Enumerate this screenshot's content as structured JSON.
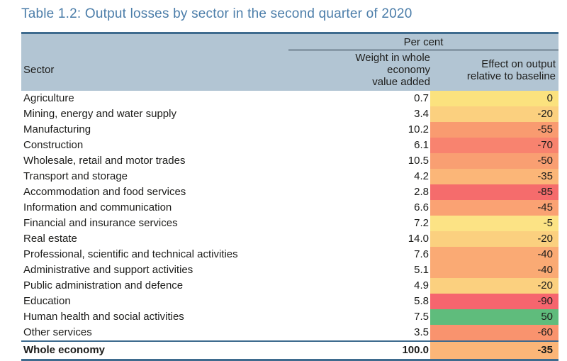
{
  "title": "Table 1.2: Output losses by sector in the second quarter of 2020",
  "colors": {
    "title_blue": "#4B7DA9",
    "header_background": "#B2C5D3",
    "table_border": "#3E6B8E",
    "percent_underline": "#22313F",
    "body_text": "#1d1d1b"
  },
  "table": {
    "group_header": "Per cent",
    "columns": {
      "sector": "Sector",
      "weight_line1": "Weight in whole economy",
      "weight_line2": "value added",
      "effect_line1": "Effect on output",
      "effect_line2": "relative to baseline"
    },
    "rows": [
      {
        "sector": "Agriculture",
        "weight": "0.7",
        "effect": "0",
        "color": "#FBE27E"
      },
      {
        "sector": "Mining, energy and water supply",
        "weight": "3.4",
        "effect": "-20",
        "color": "#FBD07F"
      },
      {
        "sector": "Manufacturing",
        "weight": "10.2",
        "effect": "-55",
        "color": "#F99B70"
      },
      {
        "sector": "Construction",
        "weight": "6.1",
        "effect": "-70",
        "color": "#F8836F"
      },
      {
        "sector": "Wholesale, retail and motor trades",
        "weight": "10.5",
        "effect": "-50",
        "color": "#F99F72"
      },
      {
        "sector": "Transport and storage",
        "weight": "4.2",
        "effect": "-35",
        "color": "#FBB678"
      },
      {
        "sector": "Accommodation and food services",
        "weight": "2.8",
        "effect": "-85",
        "color": "#F56C6C"
      },
      {
        "sector": "Information and communication",
        "weight": "6.6",
        "effect": "-45",
        "color": "#FAA273"
      },
      {
        "sector": "Financial and insurance services",
        "weight": "7.2",
        "effect": "-5",
        "color": "#FCE385"
      },
      {
        "sector": "Real estate",
        "weight": "14.0",
        "effect": "-20",
        "color": "#FBD07F"
      },
      {
        "sector": "Professional, scientific and technical activities",
        "weight": "7.6",
        "effect": "-40",
        "color": "#FAAA74"
      },
      {
        "sector": "Administrative and support activities",
        "weight": "5.1",
        "effect": "-40",
        "color": "#FAAA74"
      },
      {
        "sector": "Public administration and defence",
        "weight": "4.9",
        "effect": "-20",
        "color": "#FBD07F"
      },
      {
        "sector": "Education",
        "weight": "5.8",
        "effect": "-90",
        "color": "#F6656E"
      },
      {
        "sector": "Human health and social activities",
        "weight": "7.5",
        "effect": "50",
        "color": "#5FBC7C"
      },
      {
        "sector": "Other services",
        "weight": "3.5",
        "effect": "-60",
        "color": "#F9936E"
      }
    ],
    "total": {
      "sector": "Whole economy",
      "weight": "100.0",
      "effect": "-35",
      "color": "#FBB678"
    }
  },
  "chart_data": {
    "type": "table",
    "title": "Table 1.2: Output losses by sector in the second quarter of 2020",
    "unit": "Per cent",
    "columns": [
      "Sector",
      "Weight in whole economy value added",
      "Effect on output relative to baseline"
    ],
    "rows": [
      [
        "Agriculture",
        0.7,
        0
      ],
      [
        "Mining, energy and water supply",
        3.4,
        -20
      ],
      [
        "Manufacturing",
        10.2,
        -55
      ],
      [
        "Construction",
        6.1,
        -70
      ],
      [
        "Wholesale, retail and motor trades",
        10.5,
        -50
      ],
      [
        "Transport and storage",
        4.2,
        -35
      ],
      [
        "Accommodation and food services",
        2.8,
        -85
      ],
      [
        "Information and communication",
        6.6,
        -45
      ],
      [
        "Financial and insurance services",
        7.2,
        -5
      ],
      [
        "Real estate",
        14.0,
        -20
      ],
      [
        "Professional, scientific and technical activities",
        7.6,
        -40
      ],
      [
        "Administrative and support activities",
        5.1,
        -40
      ],
      [
        "Public administration and defence",
        4.9,
        -20
      ],
      [
        "Education",
        5.8,
        -90
      ],
      [
        "Human health and social activities",
        7.5,
        50
      ],
      [
        "Other services",
        3.5,
        -60
      ],
      [
        "Whole economy",
        100.0,
        -35
      ]
    ],
    "notes": "Effect column uses red-yellow-green colour scale: -90 red through 0 yellow to +50 green"
  }
}
